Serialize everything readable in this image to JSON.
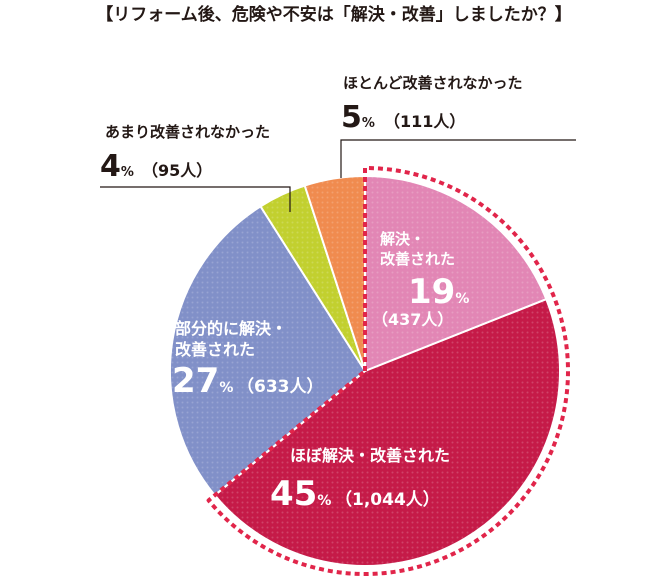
{
  "title": "【リフォーム後、危険や不安は「解決・改善」しましたか？】",
  "percent_unit": "%",
  "colors": {
    "text": "#231815",
    "label_on_slice": "#ffffff",
    "dashed_highlight": "#e1254a"
  },
  "chart_data": {
    "type": "pie",
    "title": "【リフォーム後、危険や不安は「解決・改善」しましたか？】",
    "start": "12 o'clock",
    "direction": "clockwise",
    "slices": [
      {
        "label_lines": [
          "解決・",
          "改善された"
        ],
        "percent": 19,
        "count": "（437人）",
        "color": "#e286b5",
        "label_position": "inside"
      },
      {
        "label_lines": [
          "ほぼ解決・改善された"
        ],
        "percent": 45,
        "count": "（1,044人）",
        "color": "#c51a48",
        "label_position": "inside"
      },
      {
        "label_lines": [
          "部分的に解決・",
          "改善された"
        ],
        "percent": 27,
        "count": "（633人）",
        "color": "#8190c8",
        "label_position": "inside"
      },
      {
        "label_lines": [
          "あまり改善されなかった"
        ],
        "percent": 4,
        "count": "（95人）",
        "color": "#c2d02f",
        "label_position": "outside-left"
      },
      {
        "label_lines": [
          "ほとんど改善されなかった"
        ],
        "percent": 5,
        "count": "（111人）",
        "color": "#f08b4f",
        "label_position": "outside-right"
      }
    ],
    "highlight": "dashed red outline around the 解決・改善された and ほぼ解決・改善された slices"
  }
}
